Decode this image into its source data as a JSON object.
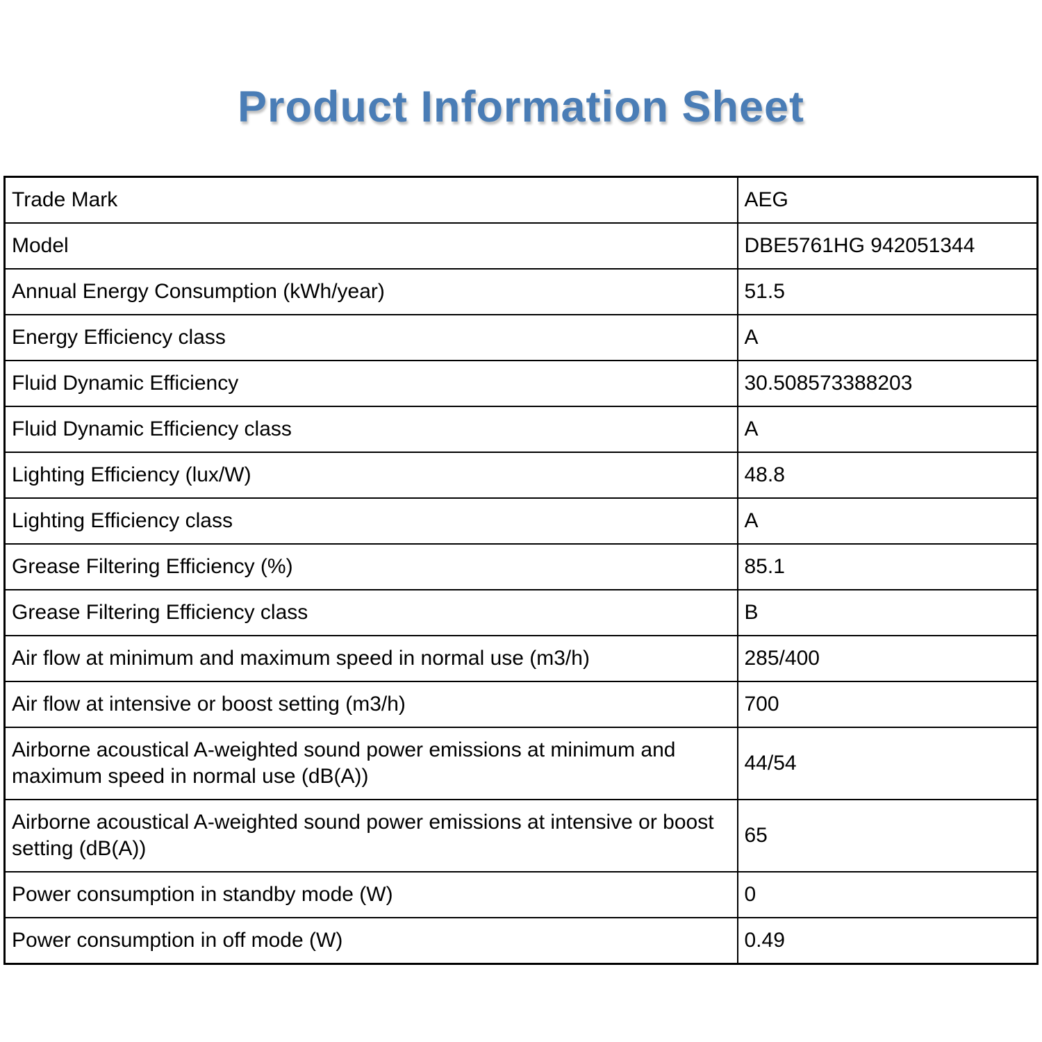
{
  "title": "Product Information Sheet",
  "colors": {
    "title_accent": "#4a7db6",
    "table_border": "#000000",
    "text": "#000000",
    "background": "#ffffff"
  },
  "table": {
    "columns": [
      "attribute",
      "value"
    ],
    "rows": [
      {
        "label": "Trade Mark",
        "value": "AEG"
      },
      {
        "label": "Model",
        "value": "DBE5761HG 942051344"
      },
      {
        "label": "Annual Energy Consumption (kWh/year)",
        "value": "51.5"
      },
      {
        "label": "Energy Efficiency class",
        "value": "A"
      },
      {
        "label": "Fluid Dynamic Efficiency",
        "value": "30.508573388203"
      },
      {
        "label": "Fluid Dynamic Efficiency class",
        "value": "A"
      },
      {
        "label": "Lighting Efficiency (lux/W)",
        "value": "48.8"
      },
      {
        "label": "Lighting Efficiency class",
        "value": "A"
      },
      {
        "label": "Grease Filtering Efficiency (%)",
        "value": "85.1"
      },
      {
        "label": "Grease Filtering Efficiency class",
        "value": "B"
      },
      {
        "label": "Air flow at minimum and maximum speed in normal use (m3/h)",
        "value": "285/400"
      },
      {
        "label": "Air flow at intensive or boost setting (m3/h)",
        "value": "700"
      },
      {
        "label": "Airborne acoustical A-weighted sound power emissions at minimum and maximum speed in normal use (dB(A))",
        "value": "44/54"
      },
      {
        "label": "Airborne acoustical A-weighted sound power emissions at intensive or boost setting (dB(A))",
        "value": "65"
      },
      {
        "label": "Power consumption in standby mode (W)",
        "value": "0"
      },
      {
        "label": "Power consumption in off mode (W)",
        "value": "0.49"
      }
    ]
  }
}
